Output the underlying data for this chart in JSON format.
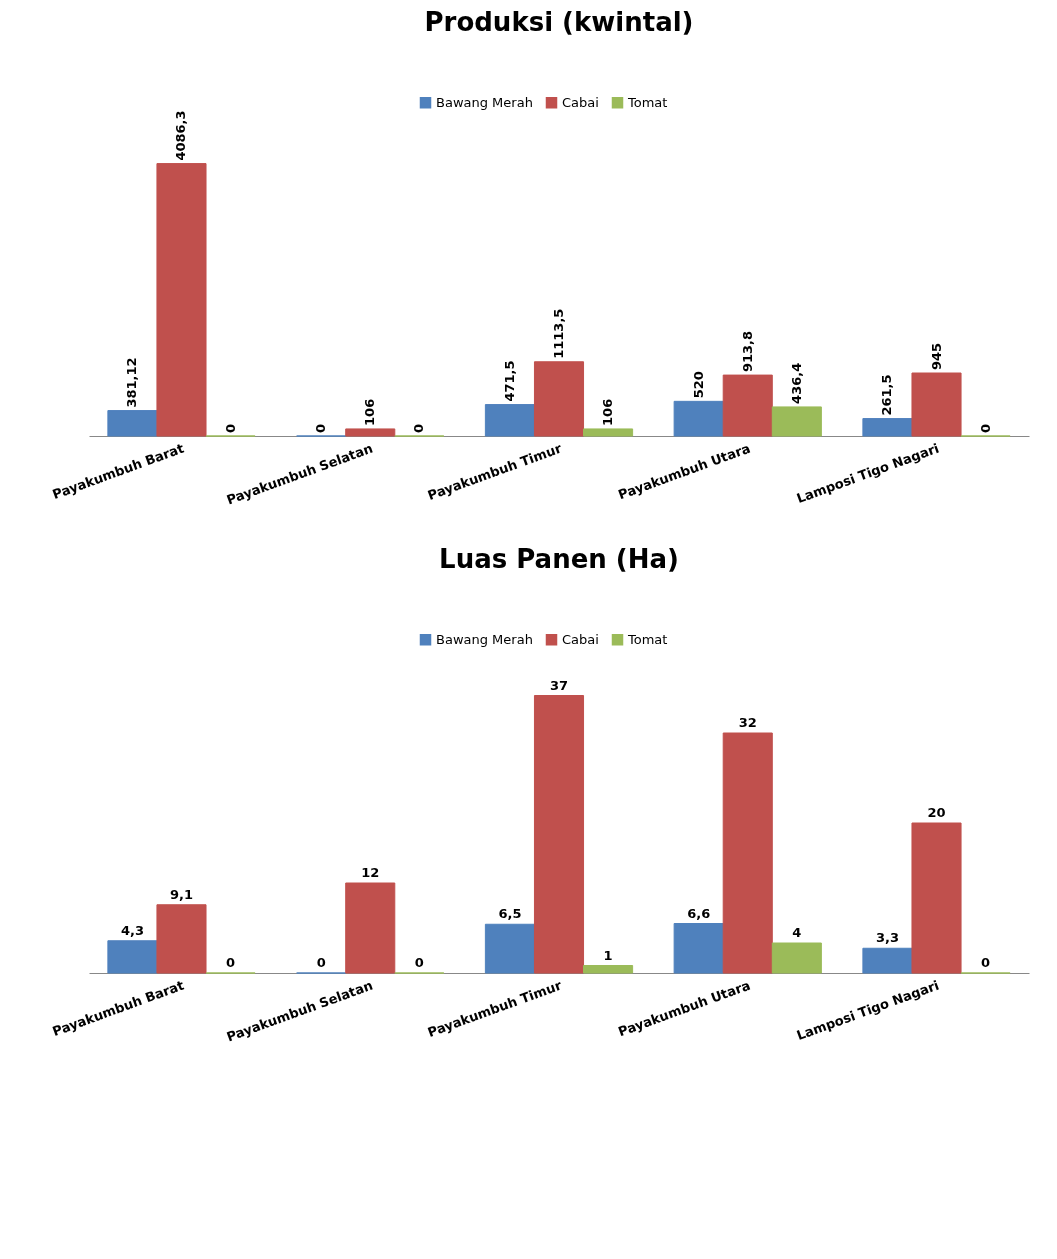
{
  "chart_data": [
    {
      "type": "bar",
      "title": "Produksi (kwintal)",
      "categories": [
        "Payakumbuh Barat",
        "Payakumbuh Selatan",
        "Payakumbuh Timur",
        "Payakumbuh Utara",
        "Lamposi Tigo Nagari"
      ],
      "legend": "top",
      "grid": false,
      "series": [
        {
          "name": "Bawang Merah",
          "color": "#4f81bd",
          "values": [
            381.12,
            0,
            471.5,
            520,
            261.5
          ],
          "value_labels": [
            "381,12",
            "0",
            "471,5",
            "520",
            "261,5"
          ]
        },
        {
          "name": "Cabai",
          "color": "#c0504d",
          "values": [
            4086.3,
            106,
            1113.5,
            913.8,
            945
          ],
          "value_labels": [
            "4086,3",
            "106",
            "1113,5",
            "913,8",
            "945"
          ]
        },
        {
          "name": "Tomat",
          "color": "#9bbb59",
          "values": [
            0,
            0,
            106,
            436.4,
            0
          ],
          "value_labels": [
            "0",
            "0",
            "106",
            "436,4",
            "0"
          ]
        }
      ]
    },
    {
      "type": "bar",
      "title": "Luas Panen (Ha)",
      "categories": [
        "Payakumbuh Barat",
        "Payakumbuh Selatan",
        "Payakumbuh Timur",
        "Payakumbuh Utara",
        "Lamposi Tigo Nagari"
      ],
      "legend": "top",
      "grid": false,
      "series": [
        {
          "name": "Bawang Merah",
          "color": "#4f81bd",
          "values": [
            4.3,
            0,
            6.5,
            6.6,
            3.3
          ],
          "value_labels": [
            "4,3",
            "0",
            "6,5",
            "6,6",
            "3,3"
          ]
        },
        {
          "name": "Cabai",
          "color": "#c0504d",
          "values": [
            9.1,
            12,
            37,
            32,
            20
          ],
          "value_labels": [
            "9,1",
            "12",
            "37",
            "32",
            "20"
          ]
        },
        {
          "name": "Tomat",
          "color": "#9bbb59",
          "values": [
            0,
            0,
            1,
            4,
            0
          ],
          "value_labels": [
            "0",
            "0",
            "1",
            "4",
            "0"
          ]
        }
      ]
    }
  ]
}
